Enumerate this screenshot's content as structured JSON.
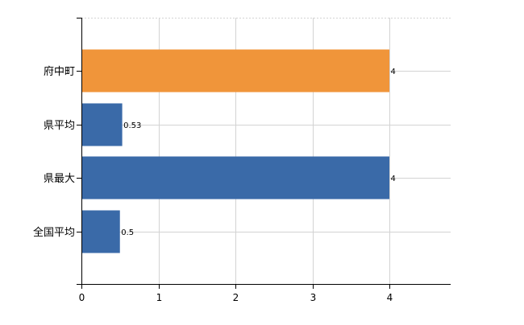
{
  "chart_data": {
    "type": "bar",
    "orientation": "horizontal",
    "categories": [
      "府中町",
      "県平均",
      "県最大",
      "全国平均"
    ],
    "values": [
      4,
      0.53,
      4,
      0.5
    ],
    "value_labels": [
      "4",
      "0.53",
      "4",
      "0.5"
    ],
    "bar_colors": [
      "#f0953a",
      "#3a6aa8",
      "#3a6aa8",
      "#3a6aa8"
    ],
    "title": "",
    "xlabel": "",
    "ylabel": "",
    "xlim": [
      0,
      4.8
    ],
    "x_ticks": [
      0,
      1,
      2,
      3,
      4
    ],
    "grid": true,
    "legend": "none"
  }
}
